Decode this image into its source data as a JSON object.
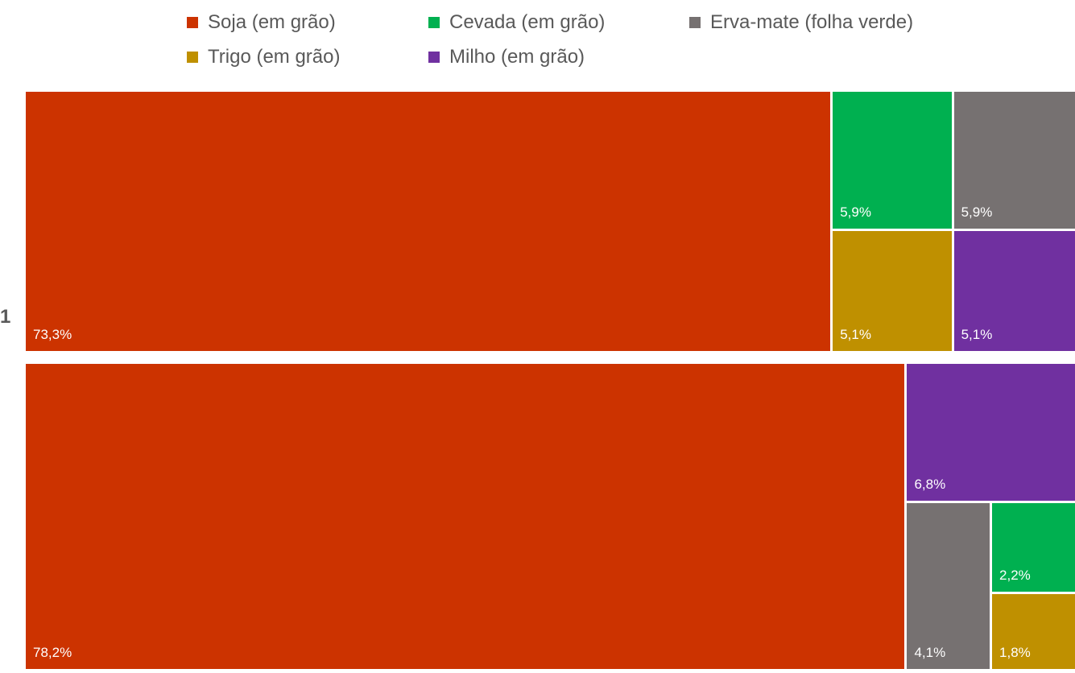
{
  "chart_data": {
    "type": "treemap",
    "legend_position": "top",
    "series": [
      {
        "name": "Soja (em grão)",
        "color": "#CC3300"
      },
      {
        "name": "Cevada (em grão)",
        "color": "#00B050"
      },
      {
        "name": "Erva-mate (folha verde)",
        "color": "#767171"
      },
      {
        "name": "Trigo (em grão)",
        "color": "#BF9000"
      },
      {
        "name": "Milho (em grão)",
        "color": "#7030A0"
      }
    ],
    "groups": [
      {
        "label": "1",
        "items": [
          {
            "series": "Soja (em grão)",
            "value": 73.3,
            "label": "73,3%"
          },
          {
            "series": "Cevada (em grão)",
            "value": 5.9,
            "label": "5,9%"
          },
          {
            "series": "Erva-mate (folha verde)",
            "value": 5.9,
            "label": "5,9%"
          },
          {
            "series": "Trigo (em grão)",
            "value": 5.1,
            "label": "5,1%"
          },
          {
            "series": "Milho (em grão)",
            "value": 5.1,
            "label": "5,1%"
          }
        ]
      },
      {
        "label": "",
        "items": [
          {
            "series": "Soja (em grão)",
            "value": 78.2,
            "label": "78,2%"
          },
          {
            "series": "Milho (em grão)",
            "value": 6.8,
            "label": "6,8%"
          },
          {
            "series": "Erva-mate (folha verde)",
            "value": 4.1,
            "label": "4,1%"
          },
          {
            "series": "Cevada (em grão)",
            "value": 2.2,
            "label": "2,2%"
          },
          {
            "series": "Trigo (em grão)",
            "value": 1.8,
            "label": "1,8%"
          }
        ]
      }
    ]
  }
}
